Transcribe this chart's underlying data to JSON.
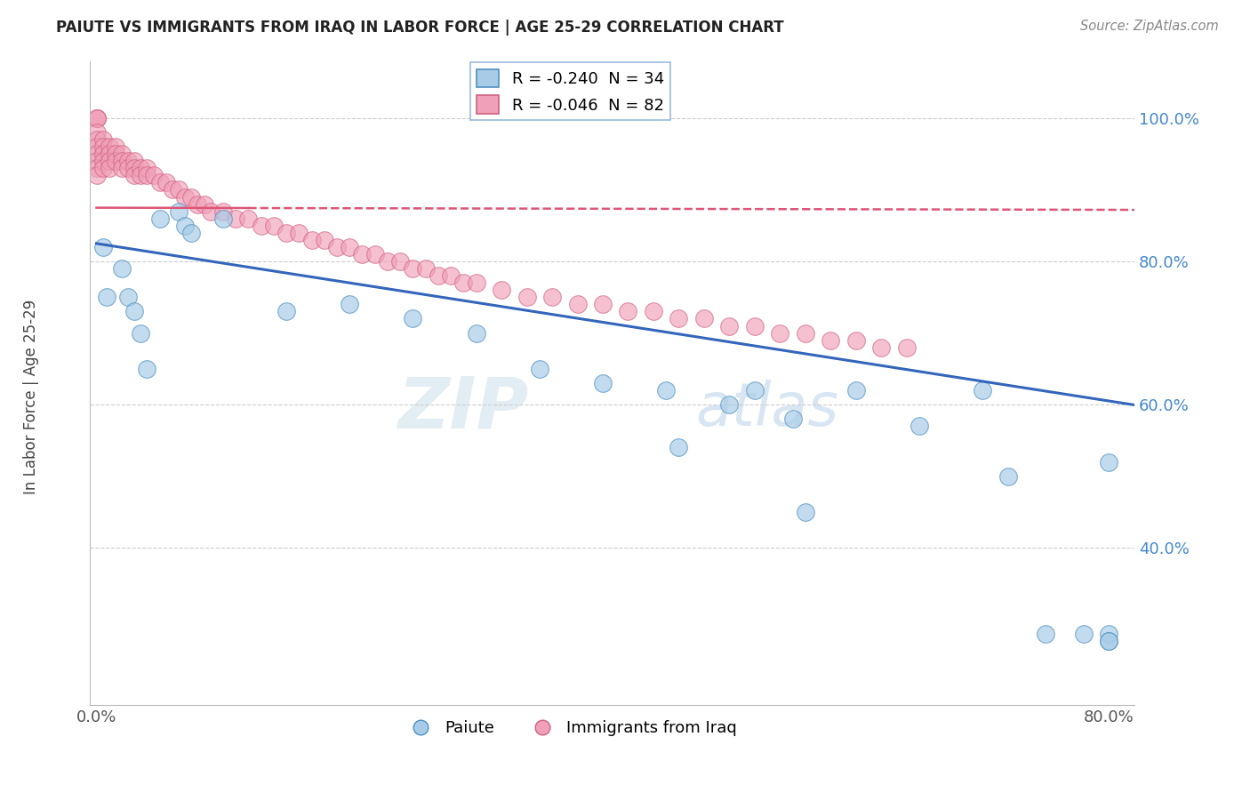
{
  "title": "PAIUTE VS IMMIGRANTS FROM IRAQ IN LABOR FORCE | AGE 25-29 CORRELATION CHART",
  "source_text": "Source: ZipAtlas.com",
  "ylabel": "In Labor Force | Age 25-29",
  "xlim": [
    -0.005,
    0.82
  ],
  "ylim": [
    0.18,
    1.08
  ],
  "xtick_labels": [
    "0.0%",
    "80.0%"
  ],
  "xtick_positions": [
    0.0,
    0.8
  ],
  "ytick_labels": [
    "100.0%",
    "80.0%",
    "60.0%",
    "40.0%"
  ],
  "ytick_positions": [
    1.0,
    0.8,
    0.6,
    0.4
  ],
  "legend_label_1": "R = -0.240  N = 34",
  "legend_label_2": "R = -0.046  N = 82",
  "watermark_zip": "ZIP",
  "watermark_atlas": "atlas",
  "paiute_color": "#a8cce8",
  "paiute_edge_color": "#5090c0",
  "iraq_color": "#f0a0b8",
  "iraq_edge_color": "#d06080",
  "paiute_line_color": "#3366bb",
  "iraq_line_color": "#dd5577",
  "paiute_x": [
    0.005,
    0.02,
    0.025,
    0.05,
    0.065,
    0.07,
    0.075,
    0.1,
    0.15,
    0.2,
    0.25,
    0.3,
    0.35,
    0.4,
    0.45,
    0.5,
    0.55,
    0.6,
    0.65,
    0.7,
    0.72,
    0.75,
    0.78,
    0.8,
    0.8,
    0.8,
    0.8,
    0.52,
    0.56,
    0.46,
    0.03,
    0.035,
    0.04,
    0.008
  ],
  "paiute_y": [
    0.82,
    0.79,
    0.75,
    0.86,
    0.87,
    0.85,
    0.84,
    0.86,
    0.73,
    0.74,
    0.72,
    0.7,
    0.65,
    0.63,
    0.62,
    0.6,
    0.58,
    0.62,
    0.57,
    0.62,
    0.5,
    0.28,
    0.28,
    0.28,
    0.27,
    0.27,
    0.52,
    0.62,
    0.45,
    0.54,
    0.73,
    0.7,
    0.65,
    0.75
  ],
  "iraq_x": [
    0.0,
    0.0,
    0.0,
    0.0,
    0.0,
    0.0,
    0.0,
    0.0,
    0.0,
    0.0,
    0.005,
    0.005,
    0.005,
    0.005,
    0.005,
    0.01,
    0.01,
    0.01,
    0.01,
    0.015,
    0.015,
    0.015,
    0.02,
    0.02,
    0.02,
    0.025,
    0.025,
    0.03,
    0.03,
    0.03,
    0.035,
    0.035,
    0.04,
    0.04,
    0.045,
    0.05,
    0.055,
    0.06,
    0.065,
    0.07,
    0.075,
    0.08,
    0.085,
    0.09,
    0.1,
    0.11,
    0.12,
    0.13,
    0.14,
    0.15,
    0.16,
    0.17,
    0.18,
    0.19,
    0.2,
    0.21,
    0.22,
    0.23,
    0.24,
    0.25,
    0.26,
    0.27,
    0.28,
    0.29,
    0.3,
    0.32,
    0.34,
    0.36,
    0.38,
    0.4,
    0.42,
    0.44,
    0.46,
    0.48,
    0.5,
    0.52,
    0.54,
    0.56,
    0.58,
    0.6,
    0.62,
    0.64
  ],
  "iraq_y": [
    1.0,
    1.0,
    1.0,
    0.98,
    0.97,
    0.96,
    0.95,
    0.94,
    0.93,
    0.92,
    0.97,
    0.96,
    0.95,
    0.94,
    0.93,
    0.96,
    0.95,
    0.94,
    0.93,
    0.96,
    0.95,
    0.94,
    0.95,
    0.94,
    0.93,
    0.94,
    0.93,
    0.94,
    0.93,
    0.92,
    0.93,
    0.92,
    0.93,
    0.92,
    0.92,
    0.91,
    0.91,
    0.9,
    0.9,
    0.89,
    0.89,
    0.88,
    0.88,
    0.87,
    0.87,
    0.86,
    0.86,
    0.85,
    0.85,
    0.84,
    0.84,
    0.83,
    0.83,
    0.82,
    0.82,
    0.81,
    0.81,
    0.8,
    0.8,
    0.79,
    0.79,
    0.78,
    0.78,
    0.77,
    0.77,
    0.76,
    0.75,
    0.75,
    0.74,
    0.74,
    0.73,
    0.73,
    0.72,
    0.72,
    0.71,
    0.71,
    0.7,
    0.7,
    0.69,
    0.69,
    0.68,
    0.68
  ]
}
